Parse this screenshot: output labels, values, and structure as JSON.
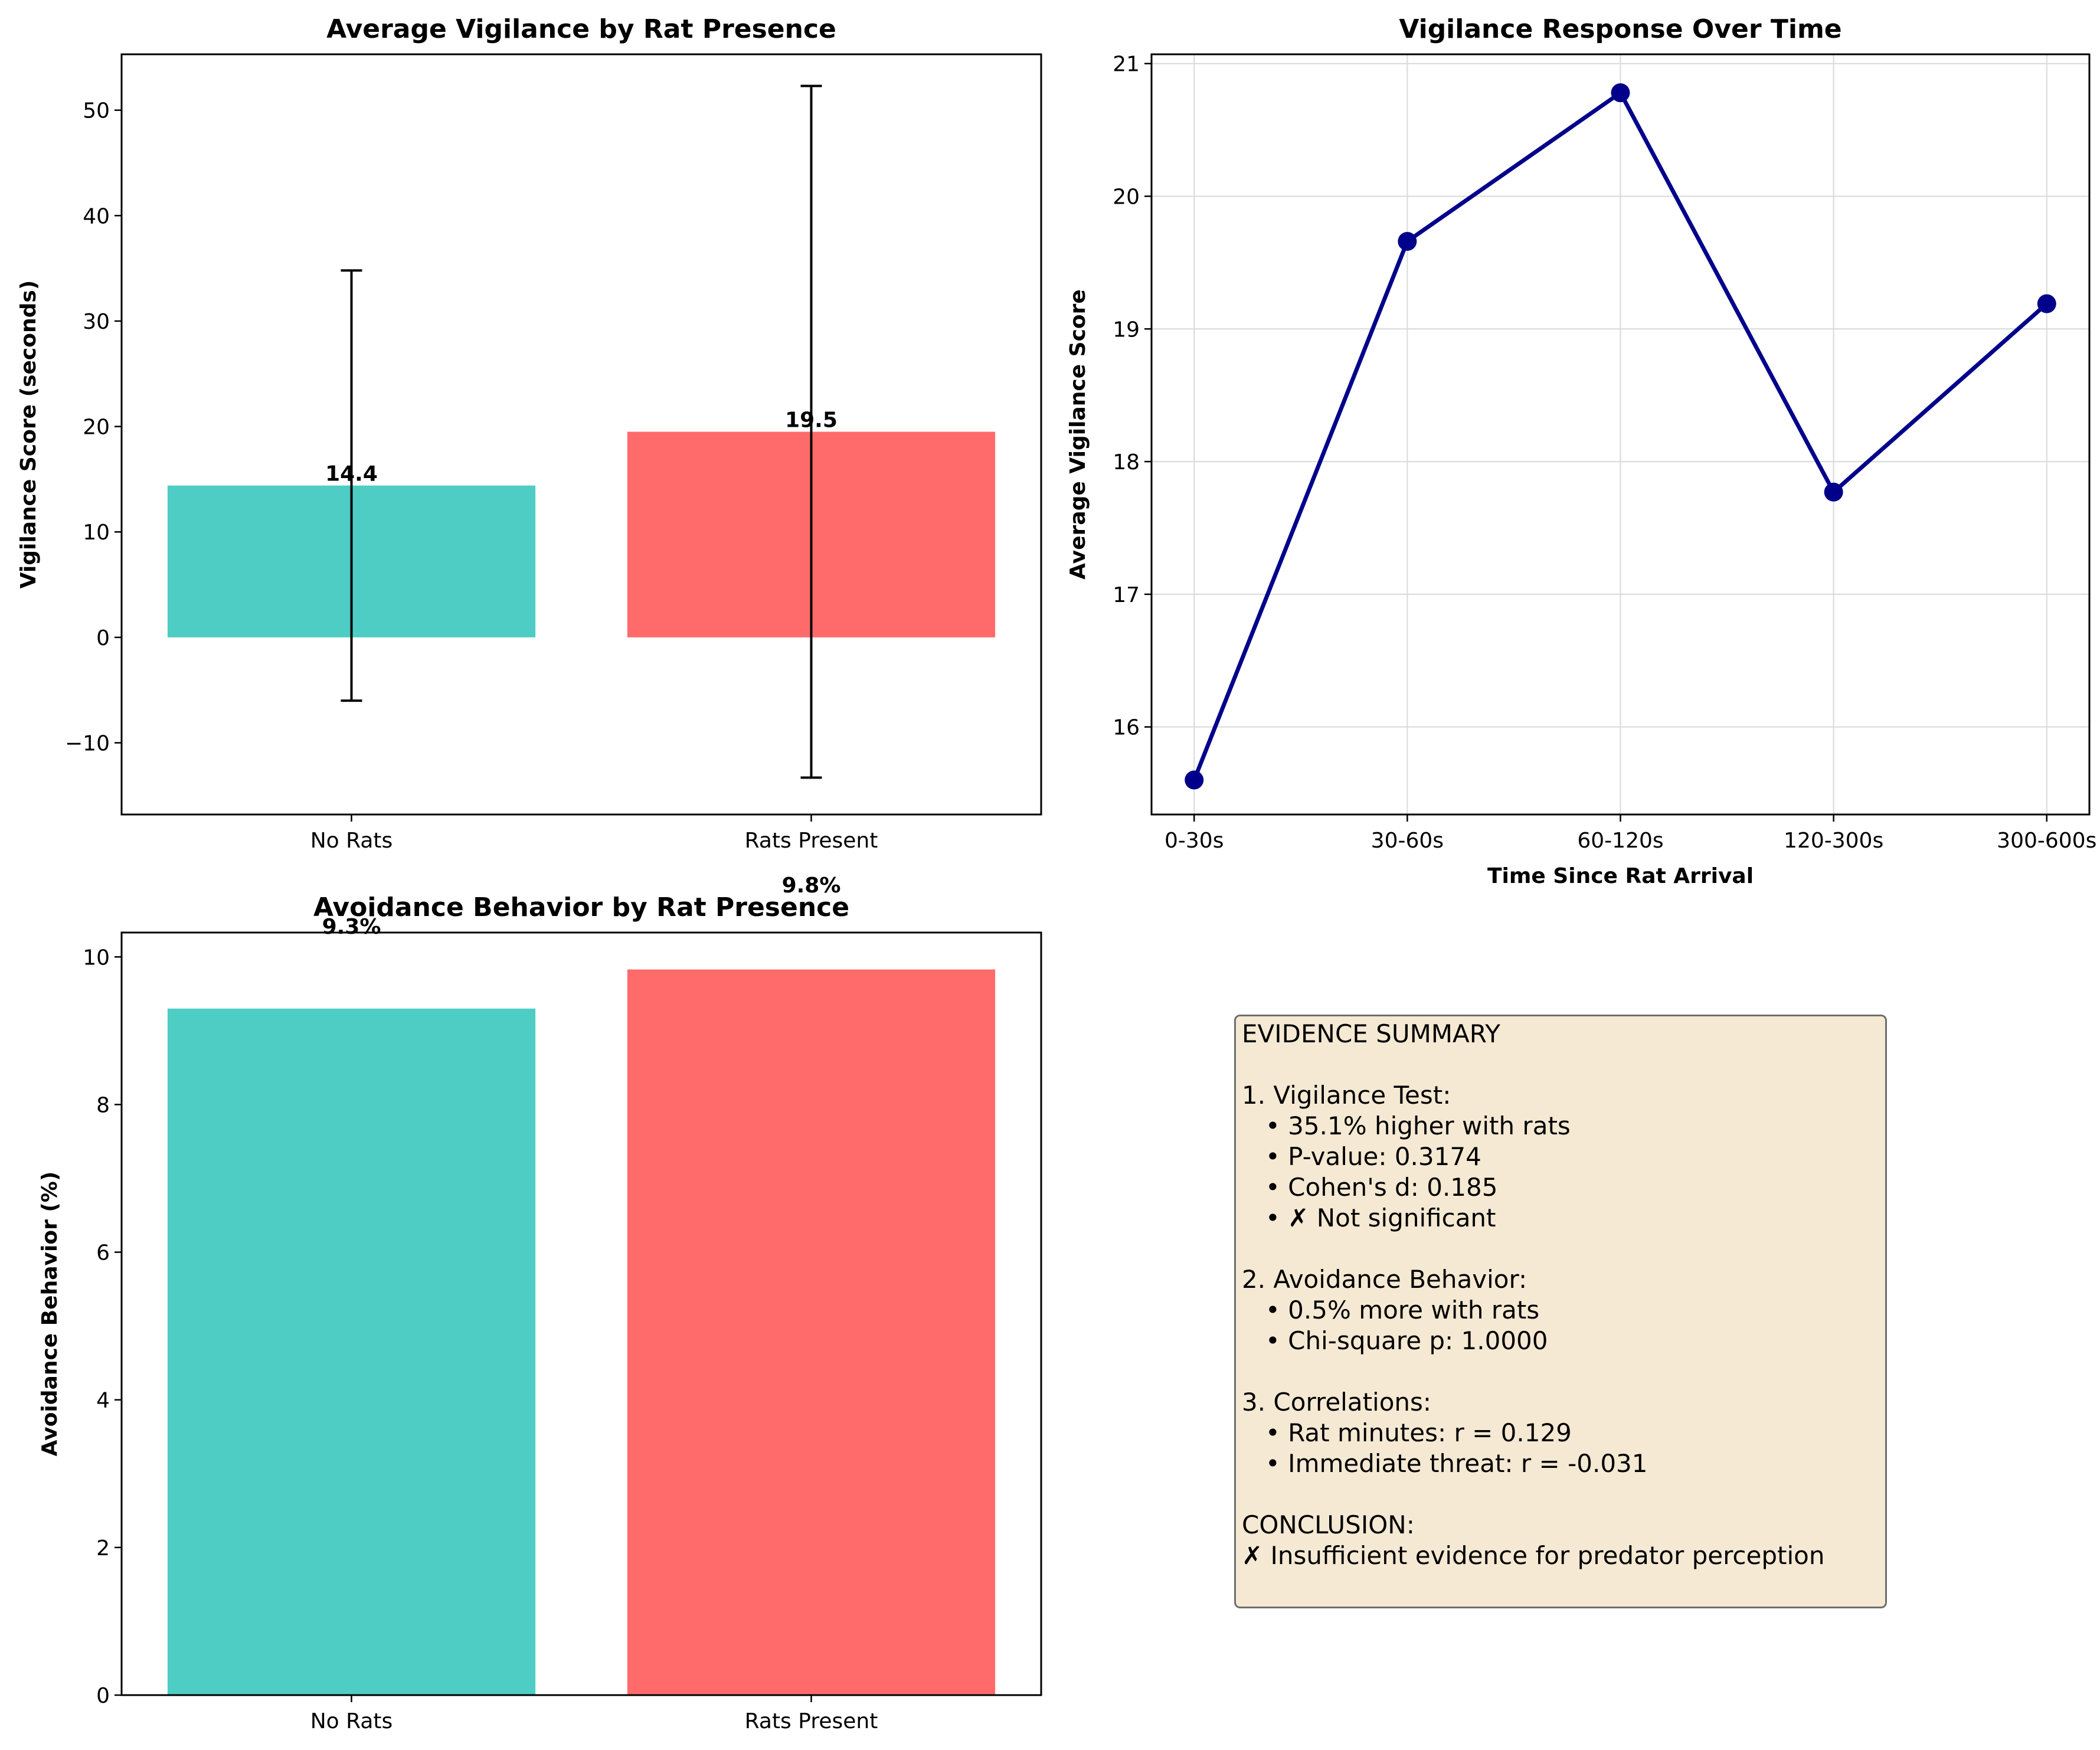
{
  "chart_data": [
    {
      "id": "vigilance_bar",
      "type": "bar",
      "title": "Average Vigilance by Rat Presence",
      "xlabel": "",
      "ylabel": "Vigilance Score (seconds)",
      "categories": [
        "No Rats",
        "Rats Present"
      ],
      "values": [
        14.4,
        19.5
      ],
      "value_labels": [
        "14.4",
        "19.5"
      ],
      "error_bars": [
        20.4,
        32.8
      ],
      "colors": [
        "#4ecdc4",
        "#ff6b6b"
      ],
      "ylim": [
        -16.8,
        55.3
      ],
      "yticks": [
        -10,
        0,
        10,
        20,
        30,
        40,
        50
      ],
      "ytick_labels": [
        "−10",
        "0",
        "10",
        "20",
        "30",
        "40",
        "50"
      ],
      "grid": false
    },
    {
      "id": "vigilance_time",
      "type": "line",
      "title": "Vigilance Response Over Time",
      "xlabel": "Time Since Rat Arrival",
      "ylabel": "Average Vigilance Score",
      "categories": [
        "0-30s",
        "30-60s",
        "60-120s",
        "120-300s",
        "300-600s"
      ],
      "values": [
        15.6,
        19.66,
        20.78,
        17.77,
        19.19
      ],
      "color": "#00008b",
      "ylim": [
        15.34,
        21.07
      ],
      "yticks": [
        16,
        17,
        18,
        19,
        20,
        21
      ],
      "ytick_labels": [
        "16",
        "17",
        "18",
        "19",
        "20",
        "21"
      ],
      "grid": true
    },
    {
      "id": "avoidance_bar",
      "type": "bar",
      "title": "Avoidance Behavior by Rat Presence",
      "xlabel": "",
      "ylabel": "Avoidance Behavior (%)",
      "categories": [
        "No Rats",
        "Rats Present"
      ],
      "values": [
        9.3,
        9.83
      ],
      "value_labels": [
        "9.3%",
        "9.8%"
      ],
      "colors": [
        "#4ecdc4",
        "#ff6b6b"
      ],
      "ylim": [
        0,
        10.33
      ],
      "yticks": [
        0,
        2,
        4,
        6,
        8,
        10
      ],
      "ytick_labels": [
        "0",
        "2",
        "4",
        "6",
        "8",
        "10"
      ],
      "grid": false
    }
  ],
  "summary": {
    "lines": [
      "EVIDENCE SUMMARY",
      "",
      "1. Vigilance Test:",
      "   • 35.1% higher with rats",
      "   • P-value: 0.3174",
      "   • Cohen's d: 0.185",
      "   • ✗ Not significant",
      "",
      "2. Avoidance Behavior:",
      "   • 0.5% more with rats",
      "   • Chi-square p: 1.0000",
      "",
      "3. Correlations:",
      "   • Rat minutes: r = 0.129",
      "   • Immediate threat: r = -0.031",
      "",
      "CONCLUSION:",
      "✗ Insufficient evidence for predator perception"
    ],
    "background": "#f5e9d3"
  }
}
